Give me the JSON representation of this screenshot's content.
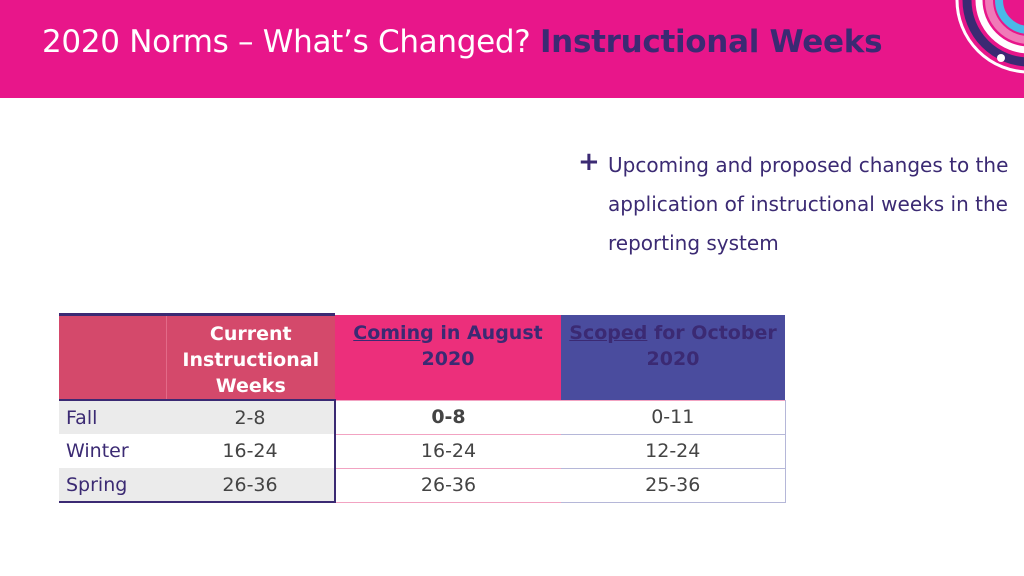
{
  "header": {
    "title_main": "2020 Norms – What’s Changed?",
    "title_strong": "Instructional Weeks"
  },
  "bullet": {
    "text": "Upcoming and proposed changes to the application of instructional weeks in the reporting system"
  },
  "table": {
    "col_current": "Current Instructional Weeks",
    "col_coming_ul": "Coming",
    "col_coming_rest": " in August 2020",
    "col_scoped_ul": "Scoped",
    "col_scoped_rest": " for October 2020",
    "rows": [
      {
        "term": "Fall",
        "current": "2-8",
        "coming": "0-8",
        "scoped": "0-11"
      },
      {
        "term": "Winter",
        "current": "16-24",
        "coming": "16-24",
        "scoped": "12-24"
      },
      {
        "term": "Spring",
        "current": "26-36",
        "coming": "26-36",
        "scoped": "25-36"
      }
    ]
  },
  "colors": {
    "header_pink": "#e8168a",
    "navy": "#3b2a73",
    "highlight_red": "#e3001b"
  }
}
